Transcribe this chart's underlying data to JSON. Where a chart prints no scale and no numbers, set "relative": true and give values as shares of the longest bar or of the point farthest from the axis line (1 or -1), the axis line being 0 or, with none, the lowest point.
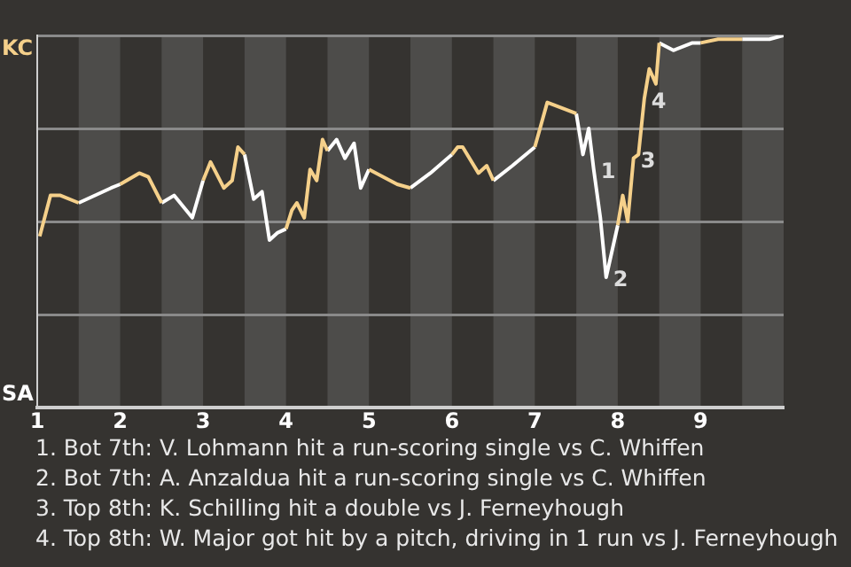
{
  "chart_data": {
    "type": "line",
    "relative": true,
    "x": [
      1.03,
      1.16,
      1.28,
      1.5,
      1.89,
      2,
      2.23,
      2.34,
      2.5,
      2.65,
      2.87,
      3,
      3.09,
      3.25,
      3.35,
      3.42,
      3.5,
      3.61,
      3.71,
      3.8,
      3.9,
      4,
      4.07,
      4.13,
      4.22,
      4.29,
      4.37,
      4.44,
      4.5,
      4.61,
      4.71,
      4.82,
      4.9,
      5,
      5.34,
      5.5,
      5.74,
      6,
      6.07,
      6.13,
      6.32,
      6.42,
      6.5,
      6.73,
      7,
      7.15,
      7.5,
      7.58,
      7.65,
      7.71,
      7.79,
      7.86,
      7.9,
      8,
      8.06,
      8.12,
      8.19,
      8.25,
      8.32,
      8.38,
      8.46,
      8.5,
      8.67,
      8.9,
      9,
      9.21,
      9.5,
      9.71,
      9.83,
      10
    ],
    "series": [
      {
        "color": "#f5d08a",
        "values": [
          0.46,
          0.57,
          0.57,
          0.55,
          null,
          0.6,
          0.63,
          0.62,
          0.55,
          null,
          null,
          0.61,
          0.66,
          0.59,
          0.61,
          0.7,
          0.68,
          null,
          null,
          null,
          null,
          0.48,
          0.53,
          0.55,
          0.51,
          0.64,
          0.61,
          0.72,
          0.69,
          null,
          null,
          null,
          null,
          0.64,
          0.6,
          0.59,
          null,
          0.68,
          0.7,
          0.7,
          0.63,
          0.65,
          0.61,
          null,
          0.7,
          0.82,
          0.79,
          null,
          null,
          null,
          null,
          null,
          null,
          0.49,
          0.57,
          0.5,
          0.67,
          0.68,
          0.83,
          0.91,
          0.87,
          0.98,
          null,
          null,
          0.98,
          0.99,
          0.99,
          null,
          null,
          null
        ]
      },
      {
        "color": "#ffffff",
        "values": [
          null,
          null,
          null,
          0.55,
          0.59,
          0.6,
          null,
          null,
          0.55,
          0.57,
          0.51,
          0.61,
          null,
          null,
          null,
          null,
          0.68,
          0.56,
          0.58,
          0.45,
          0.47,
          0.48,
          null,
          null,
          null,
          null,
          null,
          null,
          0.69,
          0.72,
          0.67,
          0.71,
          0.59,
          0.64,
          null,
          0.59,
          0.63,
          0.68,
          null,
          null,
          null,
          null,
          0.61,
          0.65,
          0.7,
          null,
          0.79,
          0.68,
          0.75,
          0.64,
          0.51,
          0.35,
          0.39,
          0.49,
          null,
          null,
          null,
          null,
          null,
          null,
          null,
          0.98,
          0.96,
          0.98,
          0.98,
          null,
          0.99,
          0.99,
          0.99,
          1
        ]
      }
    ],
    "xlim": [
      1,
      10
    ],
    "xticks": [
      1,
      2,
      3,
      4,
      5,
      6,
      7,
      8,
      9
    ],
    "bands": [
      {
        "axis": "x",
        "from": 1.5,
        "to": 2,
        "color": "#4d4c4a"
      },
      {
        "axis": "x",
        "from": 2.5,
        "to": 3,
        "color": "#4d4c4a"
      },
      {
        "axis": "x",
        "from": 3.5,
        "to": 4,
        "color": "#4d4c4a"
      },
      {
        "axis": "x",
        "from": 4.5,
        "to": 5,
        "color": "#4d4c4a"
      },
      {
        "axis": "x",
        "from": 5.5,
        "to": 6,
        "color": "#4d4c4a"
      },
      {
        "axis": "x",
        "from": 6.5,
        "to": 7,
        "color": "#4d4c4a"
      },
      {
        "axis": "x",
        "from": 7.5,
        "to": 8,
        "color": "#4d4c4a"
      },
      {
        "axis": "x",
        "from": 8.5,
        "to": 9,
        "color": "#4d4c4a"
      },
      {
        "axis": "x",
        "from": 9.5,
        "to": 10,
        "color": "#4d4c4a"
      }
    ],
    "annotations": [
      "KC",
      "SA",
      {
        "text": "1",
        "x": 7.71,
        "y": 0.64
      },
      {
        "text": "2",
        "x": 7.86,
        "y": 0.35
      },
      {
        "text": "3",
        "x": 8.19,
        "y": 0.67
      },
      {
        "text": "4",
        "x": 8.32,
        "y": 0.83
      },
      "1. Bot 7th: V. Lohmann hit a run-scoring single vs C. Whiffen",
      "2. Bot 7th: A. Anzaldua hit a run-scoring single vs C. Whiffen",
      "3. Top 8th: K. Schilling hit a double vs J. Ferneyhough",
      "4. Top 8th: W. Major got hit by a pitch, driving in 1 run vs J. Ferneyhough"
    ],
    "grid": "y",
    "legend": false,
    "marker": "none",
    "line_style": "solid"
  }
}
